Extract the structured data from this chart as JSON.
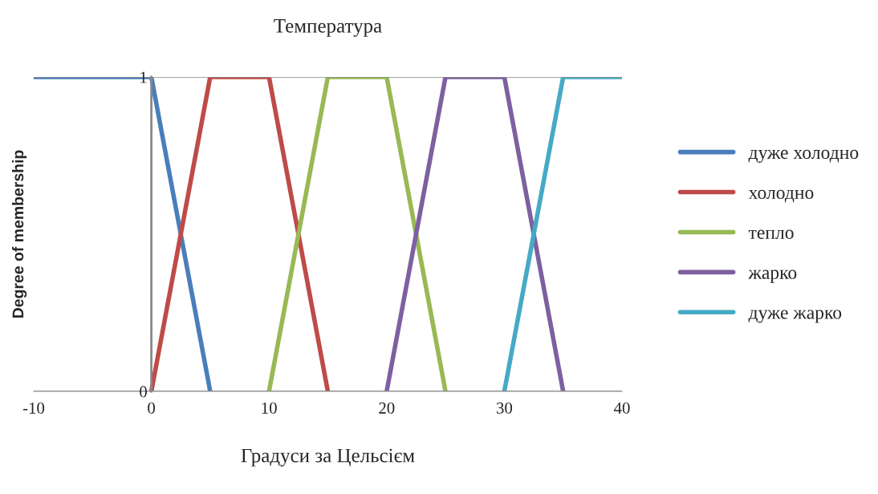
{
  "chart_data": {
    "type": "line",
    "title": "Температура",
    "xlabel": "Градуси за Цельсієм",
    "ylabel": "Degree of membership",
    "xlim": [
      -10,
      40
    ],
    "xticks": [
      -10,
      0,
      10,
      20,
      30,
      40
    ],
    "ylim": [
      0,
      1
    ],
    "yticks": [
      0,
      1
    ],
    "grid": "y",
    "legend": "right",
    "line_style": "solid",
    "marker": "none",
    "series": [
      {
        "name": "дуже холодно",
        "color": "#4a7ebb",
        "x": [
          -10,
          0,
          5
        ],
        "values": [
          1,
          1,
          0
        ]
      },
      {
        "name": "холодно",
        "color": "#be4b48",
        "x": [
          0,
          5,
          10,
          15
        ],
        "values": [
          0,
          1,
          1,
          0
        ]
      },
      {
        "name": "тепло",
        "color": "#98b954",
        "x": [
          10,
          15,
          20,
          25
        ],
        "values": [
          0,
          1,
          1,
          0
        ]
      },
      {
        "name": "жарко",
        "color": "#7d60a0",
        "x": [
          20,
          25,
          30,
          35
        ],
        "values": [
          0,
          1,
          1,
          0
        ]
      },
      {
        "name": "дуже жарко",
        "color": "#46aac5",
        "x": [
          30,
          35,
          40
        ],
        "values": [
          0,
          1,
          1
        ]
      }
    ]
  }
}
